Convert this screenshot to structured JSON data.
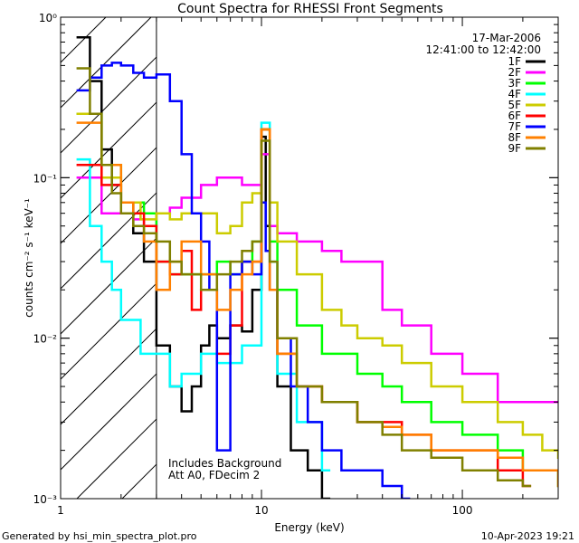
{
  "footer": {
    "generated_by": "Generated by hsi_min_spectra_plot.pro",
    "timestamp": "10-Apr-2023 19:21"
  },
  "chart_data": {
    "type": "line",
    "title": "Count Spectra for RHESSI Front Segments",
    "xlabel": "Energy (keV)",
    "ylabel": "counts cm⁻² s⁻¹ keV⁻¹",
    "x_scale": "log",
    "y_scale": "log",
    "xlim": [
      1,
      300
    ],
    "ylim": [
      0.001,
      1
    ],
    "x_ticks": [
      {
        "value": 1,
        "label": "1"
      },
      {
        "value": 10,
        "label": "10"
      },
      {
        "value": 100,
        "label": "100"
      }
    ],
    "y_ticks": [
      {
        "value": 1,
        "label": "10⁰"
      },
      {
        "value": 0.1,
        "label": "10⁻¹"
      },
      {
        "value": 0.01,
        "label": "10⁻²"
      },
      {
        "value": 0.001,
        "label": "10⁻³"
      }
    ],
    "date_label": "17-Mar-2006",
    "time_label": "12:41:00 to 12:42:00",
    "annotations": [
      "Includes Background",
      "Att A0, FDecim 2"
    ],
    "hatched_region": {
      "xmin": 1,
      "xmax": 3
    },
    "legend_position": "top-right",
    "series": [
      {
        "name": "1F",
        "color": "#000000",
        "x": [
          1.2,
          1.4,
          1.6,
          1.8,
          2.0,
          2.3,
          2.6,
          3.0,
          3.5,
          4.0,
          4.5,
          5.0,
          5.5,
          6.0,
          7.0,
          8.0,
          9.0,
          10.0,
          10.5,
          11.0,
          12.0,
          14.0,
          17.0,
          20.0
        ],
        "y": [
          0.75,
          0.4,
          0.15,
          0.09,
          0.07,
          0.045,
          0.03,
          0.009,
          0.005,
          0.0035,
          0.005,
          0.009,
          0.012,
          0.01,
          0.012,
          0.011,
          0.02,
          0.18,
          0.05,
          0.02,
          0.005,
          0.002,
          0.0015,
          0.001
        ]
      },
      {
        "name": "2F",
        "color": "#ff00ff",
        "x": [
          1.2,
          1.4,
          1.6,
          1.8,
          2.0,
          2.3,
          2.6,
          3.0,
          3.5,
          4.0,
          5.0,
          6.0,
          8.0,
          10.0,
          11.0,
          12.0,
          15.0,
          20.0,
          25.0,
          30.0,
          40.0,
          50.0,
          70.0,
          100.0,
          150.0,
          200.0,
          300.0
        ],
        "y": [
          0.1,
          0.1,
          0.06,
          0.06,
          0.06,
          0.055,
          0.05,
          0.06,
          0.065,
          0.075,
          0.09,
          0.1,
          0.09,
          0.14,
          0.05,
          0.045,
          0.04,
          0.035,
          0.03,
          0.03,
          0.015,
          0.012,
          0.008,
          0.006,
          0.004,
          0.004,
          0.004
        ]
      },
      {
        "name": "3F",
        "color": "#00ff00",
        "x": [
          1.2,
          1.6,
          2.0,
          2.6,
          3.0,
          3.5,
          4.0,
          5.0,
          6.0,
          7.0,
          8.0,
          9.0,
          10.0,
          11.0,
          12.0,
          15.0,
          20.0,
          30.0,
          40.0,
          50.0,
          70.0,
          100.0,
          150.0,
          200.0,
          300.0
        ],
        "y": [
          0.25,
          0.12,
          0.07,
          0.06,
          0.03,
          0.025,
          0.025,
          0.025,
          0.03,
          0.025,
          0.03,
          0.04,
          0.2,
          0.04,
          0.02,
          0.012,
          0.008,
          0.006,
          0.005,
          0.004,
          0.003,
          0.0025,
          0.002,
          0.0015,
          0.0012
        ]
      },
      {
        "name": "4F",
        "color": "#00ffff",
        "x": [
          1.2,
          1.4,
          1.6,
          1.8,
          2.0,
          2.5,
          3.0,
          3.5,
          4.0,
          5.0,
          6.0,
          8.0,
          10.0,
          11.0,
          12.0,
          15.0,
          20.0
        ],
        "y": [
          0.13,
          0.05,
          0.03,
          0.02,
          0.013,
          0.008,
          0.008,
          0.005,
          0.006,
          0.008,
          0.007,
          0.009,
          0.22,
          0.03,
          0.006,
          0.003,
          0.0015
        ]
      },
      {
        "name": "5F",
        "color": "#cccc00",
        "x": [
          1.2,
          1.6,
          2.0,
          2.5,
          3.0,
          3.5,
          4.0,
          5.0,
          6.0,
          7.0,
          8.0,
          9.0,
          10.0,
          11.0,
          12.0,
          15.0,
          20.0,
          25.0,
          30.0,
          40.0,
          50.0,
          70.0,
          100.0,
          150.0,
          200.0,
          250.0,
          300.0
        ],
        "y": [
          0.25,
          0.1,
          0.07,
          0.055,
          0.06,
          0.055,
          0.06,
          0.06,
          0.045,
          0.05,
          0.07,
          0.08,
          0.2,
          0.07,
          0.04,
          0.025,
          0.015,
          0.012,
          0.01,
          0.009,
          0.007,
          0.005,
          0.004,
          0.003,
          0.0025,
          0.002,
          0.0018
        ]
      },
      {
        "name": "6F",
        "color": "#ff0000",
        "x": [
          1.2,
          1.6,
          2.0,
          2.3,
          2.6,
          3.0,
          3.5,
          4.0,
          4.5,
          5.0,
          6.0,
          7.0,
          8.0,
          10.0,
          11.0,
          12.0,
          15.0,
          20.0,
          30.0,
          40.0,
          50.0,
          70.0,
          100.0,
          150.0,
          200.0
        ],
        "y": [
          0.12,
          0.09,
          0.07,
          0.06,
          0.05,
          0.03,
          0.025,
          0.035,
          0.015,
          0.02,
          0.008,
          0.012,
          0.03,
          0.2,
          0.02,
          0.008,
          0.005,
          0.004,
          0.003,
          0.003,
          0.0025,
          0.002,
          0.002,
          0.0015,
          0.0012
        ]
      },
      {
        "name": "7F",
        "color": "#0000ff",
        "x": [
          1.2,
          1.4,
          1.6,
          1.8,
          2.0,
          2.3,
          2.6,
          3.0,
          3.5,
          4.0,
          4.5,
          5.0,
          5.5,
          6.0,
          7.0,
          8.0,
          9.0,
          10.0,
          10.5,
          11.0,
          12.0,
          14.0,
          17.0,
          20.0,
          25.0,
          30.0,
          40.0,
          50.0
        ],
        "y": [
          0.35,
          0.42,
          0.5,
          0.52,
          0.5,
          0.45,
          0.42,
          0.44,
          0.3,
          0.14,
          0.06,
          0.04,
          0.02,
          0.002,
          0.025,
          0.03,
          0.025,
          0.07,
          0.035,
          0.02,
          0.01,
          0.005,
          0.003,
          0.002,
          0.0015,
          0.0015,
          0.0012,
          0.001
        ]
      },
      {
        "name": "8F",
        "color": "#ff8000",
        "x": [
          1.2,
          1.6,
          2.0,
          2.3,
          2.6,
          3.0,
          3.5,
          4.0,
          5.0,
          6.0,
          7.0,
          8.0,
          9.0,
          10.0,
          11.0,
          12.0,
          15.0,
          20.0,
          30.0,
          40.0,
          50.0,
          70.0,
          100.0,
          150.0,
          200.0,
          300.0
        ],
        "y": [
          0.22,
          0.12,
          0.07,
          0.05,
          0.04,
          0.02,
          0.03,
          0.04,
          0.025,
          0.015,
          0.02,
          0.025,
          0.03,
          0.2,
          0.02,
          0.008,
          0.005,
          0.004,
          0.003,
          0.0028,
          0.0025,
          0.002,
          0.002,
          0.0018,
          0.0015,
          0.0012
        ]
      },
      {
        "name": "9F",
        "color": "#808000",
        "x": [
          1.2,
          1.4,
          1.6,
          1.8,
          2.0,
          2.3,
          2.6,
          3.0,
          3.5,
          4.0,
          5.0,
          6.0,
          7.0,
          8.0,
          9.0,
          10.0,
          11.0,
          12.0,
          15.0,
          20.0,
          30.0,
          40.0,
          50.0,
          70.0,
          100.0,
          150.0,
          200.0
        ],
        "y": [
          0.48,
          0.25,
          0.12,
          0.08,
          0.06,
          0.05,
          0.045,
          0.04,
          0.03,
          0.025,
          0.02,
          0.025,
          0.03,
          0.035,
          0.04,
          0.17,
          0.03,
          0.01,
          0.005,
          0.004,
          0.003,
          0.0025,
          0.002,
          0.0018,
          0.0015,
          0.0013,
          0.0012
        ]
      }
    ]
  }
}
